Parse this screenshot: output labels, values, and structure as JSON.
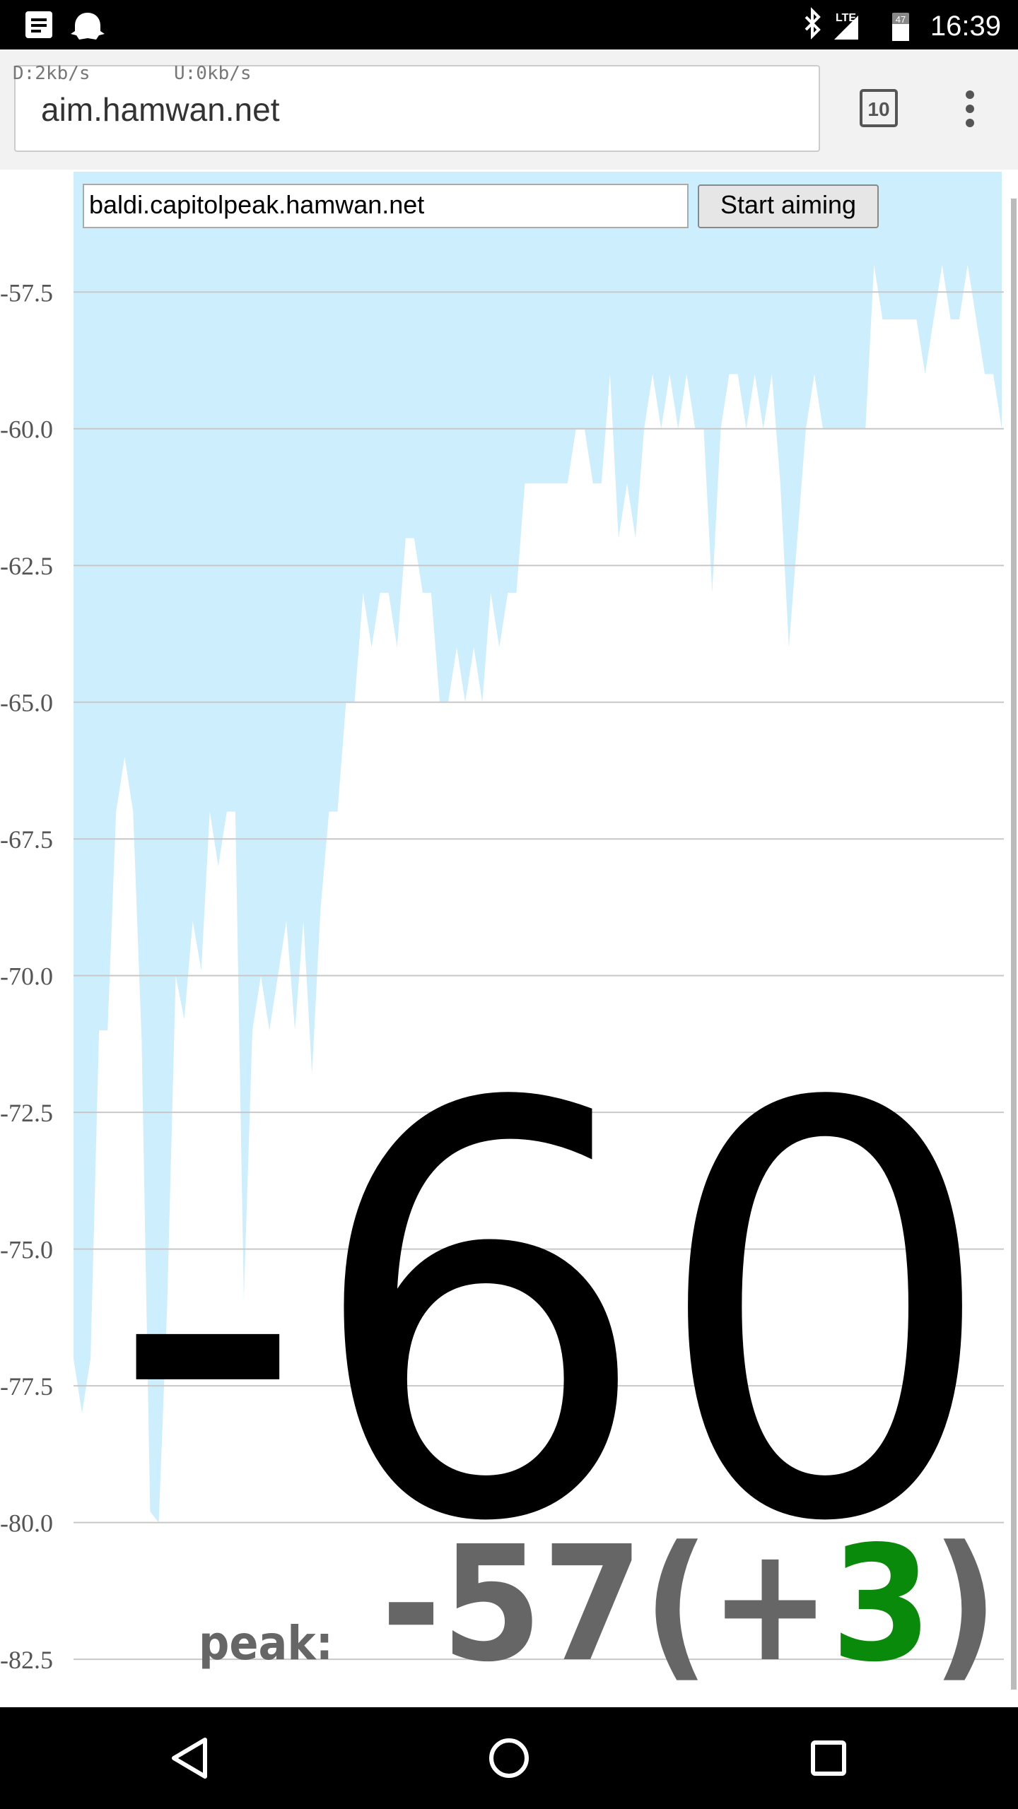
{
  "status_bar": {
    "lte": "LTE",
    "battery": "47",
    "time": "16:39"
  },
  "browser": {
    "download": "D:2kb/s",
    "upload": "U:0kb/s",
    "url": "aim.hamwan.net",
    "tabs": "10"
  },
  "form": {
    "host": "baldi.capitolpeak.hamwan.net",
    "button": "Start aiming"
  },
  "readout": {
    "current": "-60",
    "peak_label": "peak:",
    "peak_value": "-57",
    "peak_open": "(+",
    "peak_delta": "3",
    "peak_close": ")"
  },
  "chart_data": {
    "type": "area",
    "color": "#cdeefc",
    "grid": true,
    "ylim": [
      -83.3,
      -55.3
    ],
    "yticks": [
      -57.5,
      {
        "value": -60,
        "label": "-60.0"
      },
      -62.5,
      {
        "value": -65,
        "label": "-65.0"
      },
      -67.5,
      {
        "value": -70,
        "label": "-70.0"
      },
      -72.5,
      {
        "value": -75,
        "label": "-75.0"
      },
      -77.5,
      {
        "value": -80,
        "label": "-80.0"
      },
      -82.5
    ],
    "values": [
      -77,
      -78,
      -77,
      -71,
      -71,
      -67,
      -66,
      -67,
      -71.2,
      -79.8,
      -80,
      -76,
      -70,
      -70.8,
      -69,
      -69.9,
      -67,
      -68,
      -67,
      -67,
      -75.9,
      -71,
      -70,
      -71,
      -70,
      -69,
      -71,
      -69,
      -71.8,
      -68.8,
      -67,
      -67,
      -65,
      -65,
      -63,
      -64,
      -63,
      -63,
      -64,
      -62,
      -62,
      -63,
      -63,
      -65,
      -65,
      -64,
      -65,
      -64,
      -65,
      -63,
      -64,
      -63,
      -63,
      -61,
      -61,
      -61,
      -61,
      -61,
      -61,
      -60,
      -60,
      -61,
      -61,
      -59,
      -62,
      -61,
      -62,
      -60,
      -59,
      -60,
      -59,
      -60,
      -59,
      -60,
      -60,
      -63,
      -60,
      -59,
      -59,
      -60,
      -59,
      -60,
      -59,
      -61,
      -64,
      -62,
      -60,
      -59,
      -60,
      -60,
      -60,
      -60,
      -60,
      -60,
      -57,
      -58,
      -58,
      -58,
      -58,
      -58,
      -59,
      -58,
      -57,
      -58,
      -58,
      -57,
      -58,
      -59,
      -59,
      -60
    ]
  }
}
